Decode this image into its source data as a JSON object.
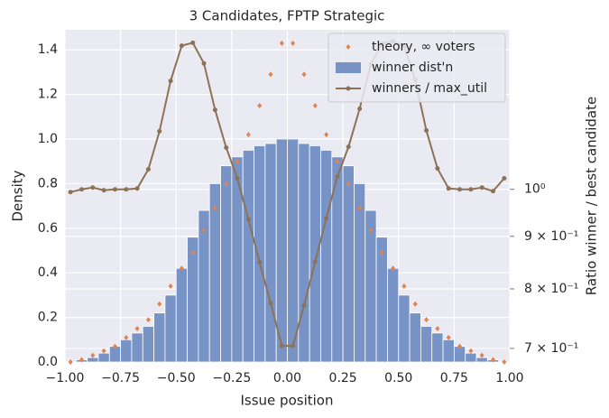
{
  "chart_data": {
    "type": "histogram",
    "title": "3 Candidates, FPTP Strategic",
    "x_label": "Issue position",
    "y_label": "Density",
    "y2_label": "Ratio winner / best candidate",
    "background": "#eaeaf2",
    "grid": true,
    "legend": "upper right",
    "xlim": [
      -1,
      1
    ],
    "xticks": [
      {
        "value": -1,
        "label": "−1.00"
      },
      {
        "value": -0.75,
        "label": "−0.75"
      },
      {
        "value": -0.5,
        "label": "−0.50"
      },
      {
        "value": -0.25,
        "label": "−0.25"
      },
      {
        "value": 0,
        "label": "0.00"
      },
      {
        "value": 0.25,
        "label": "0.25"
      },
      {
        "value": 0.5,
        "label": "0.50"
      },
      {
        "value": 0.75,
        "label": "0.75"
      },
      {
        "value": 1,
        "label": "1.00"
      }
    ],
    "ylim": [
      0,
      1.49
    ],
    "yticks": [
      {
        "value": 0,
        "label": "0.0"
      },
      0.2,
      0.4,
      0.6,
      0.8,
      {
        "value": 1,
        "label": "1.0"
      },
      1.2,
      1.4
    ],
    "y2lim": [
      0.679,
      1.43
    ],
    "y2log": true,
    "y2ticks": [
      {
        "value": 0.7,
        "label": "7 × 10⁻¹"
      },
      {
        "value": 0.8,
        "label": "8 × 10⁻¹"
      },
      {
        "value": 0.9,
        "label": "9 × 10⁻¹"
      },
      {
        "value": 1,
        "label": "10⁰"
      }
    ],
    "y2_color": "#8c7256",
    "series": [
      {
        "name": "theory, ∞ voters",
        "type": "scatter",
        "color": "#dd8452",
        "x": [
          -0.975,
          -0.925,
          -0.875,
          -0.825,
          -0.775,
          -0.725,
          -0.675,
          -0.625,
          -0.575,
          -0.525,
          -0.475,
          -0.425,
          -0.375,
          -0.325,
          -0.275,
          -0.225,
          -0.175,
          -0.125,
          -0.075,
          -0.025,
          0.025,
          0.075,
          0.125,
          0.175,
          0.225,
          0.275,
          0.325,
          0.375,
          0.425,
          0.475,
          0.525,
          0.575,
          0.625,
          0.675,
          0.725,
          0.775,
          0.825,
          0.875,
          0.925,
          0.975
        ],
        "values": [
          0.0,
          0.01,
          0.03,
          0.05,
          0.07,
          0.11,
          0.15,
          0.19,
          0.26,
          0.34,
          0.42,
          0.49,
          0.59,
          0.69,
          0.8,
          0.9,
          1.02,
          1.15,
          1.29,
          1.43,
          1.43,
          1.29,
          1.15,
          1.02,
          0.9,
          0.8,
          0.69,
          0.59,
          0.49,
          0.42,
          0.34,
          0.26,
          0.19,
          0.15,
          0.11,
          0.07,
          0.05,
          0.03,
          0.01,
          0.0
        ]
      },
      {
        "name": "winner dist'n",
        "type": "histogram",
        "color": "#7893c6",
        "bins": [
          -1,
          -0.95,
          -0.9,
          -0.85,
          -0.8,
          -0.75,
          -0.7,
          -0.65,
          -0.6,
          -0.55,
          -0.5,
          -0.45,
          -0.4,
          -0.35,
          -0.3,
          -0.25,
          -0.2,
          -0.15,
          -0.1,
          -0.05,
          0,
          0.05,
          0.1,
          0.15,
          0.2,
          0.25,
          0.3,
          0.35,
          0.4,
          0.45,
          0.5,
          0.55,
          0.6,
          0.65,
          0.7,
          0.75,
          0.8,
          0.85,
          0.9,
          0.95,
          1
        ],
        "values": [
          0.0,
          0.01,
          0.02,
          0.04,
          0.07,
          0.1,
          0.13,
          0.16,
          0.22,
          0.3,
          0.42,
          0.56,
          0.68,
          0.8,
          0.88,
          0.92,
          0.95,
          0.97,
          0.98,
          1.0,
          1.0,
          0.98,
          0.97,
          0.95,
          0.92,
          0.88,
          0.8,
          0.68,
          0.56,
          0.42,
          0.3,
          0.22,
          0.16,
          0.13,
          0.1,
          0.07,
          0.04,
          0.02,
          0.01,
          0.0
        ]
      },
      {
        "name": "winners / max_util",
        "type": "line",
        "axis": "y2",
        "color": "#8c7256",
        "x": [
          -0.975,
          -0.925,
          -0.875,
          -0.825,
          -0.775,
          -0.725,
          -0.675,
          -0.625,
          -0.575,
          -0.525,
          -0.475,
          -0.425,
          -0.375,
          -0.325,
          -0.275,
          -0.225,
          -0.175,
          -0.125,
          -0.075,
          -0.025,
          0.025,
          0.075,
          0.125,
          0.175,
          0.225,
          0.275,
          0.325,
          0.375,
          0.425,
          0.475,
          0.525,
          0.575,
          0.625,
          0.675,
          0.725,
          0.775,
          0.825,
          0.875,
          0.925,
          0.975
        ],
        "values": [
          0.994,
          1.0,
          1.004,
          0.998,
          1.0,
          1.0,
          1.002,
          1.046,
          1.139,
          1.275,
          1.38,
          1.389,
          1.326,
          1.195,
          1.098,
          1.025,
          0.935,
          0.849,
          0.775,
          0.704,
          0.704,
          0.771,
          0.85,
          0.937,
          1.029,
          1.1,
          1.198,
          1.323,
          1.386,
          1.394,
          1.378,
          1.278,
          1.141,
          1.048,
          1.002,
          1.0,
          1.0,
          1.004,
          0.996,
          1.025
        ]
      }
    ]
  }
}
